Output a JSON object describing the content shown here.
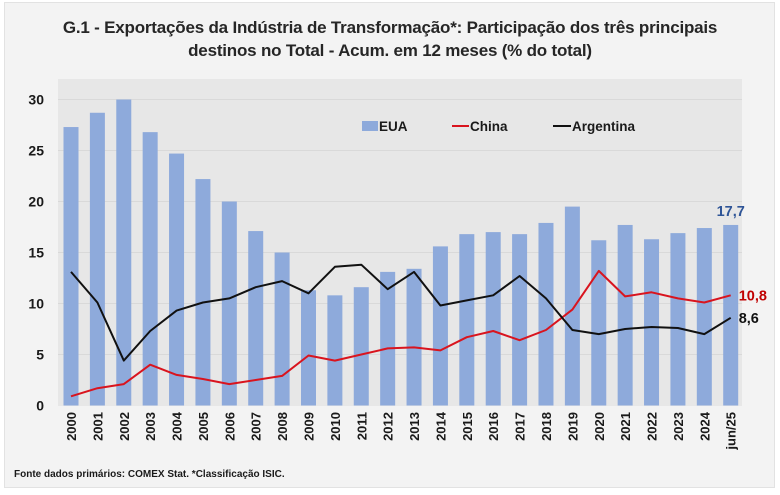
{
  "chart_data": {
    "type": "bar",
    "title": "G.1 - Exportações da Indústria de Transformação*: Participação dos três principais destinos no Total - Acum. em 12 meses (% do total)",
    "title_lines": [
      "G.1 - Exportações da Indústria de Transformação*: Participação dos três principais",
      "destinos no Total - Acum. em 12 meses (% do total)"
    ],
    "xlabel": "",
    "ylabel": "",
    "ylim": [
      0,
      30
    ],
    "yticks": [
      0,
      5,
      10,
      15,
      20,
      25,
      30
    ],
    "grid": true,
    "legend_position": "top-center",
    "categories": [
      "2000",
      "2001",
      "2002",
      "2003",
      "2004",
      "2005",
      "2006",
      "2007",
      "2008",
      "2009",
      "2010",
      "2011",
      "2012",
      "2013",
      "2014",
      "2015",
      "2016",
      "2017",
      "2018",
      "2019",
      "2020",
      "2021",
      "2022",
      "2023",
      "2024",
      "jun/25"
    ],
    "series": [
      {
        "name": "EUA",
        "type": "bar",
        "color": "#8eaadb",
        "values": [
          27.3,
          28.7,
          30.0,
          26.8,
          24.7,
          22.2,
          20.0,
          17.1,
          15.0,
          11.3,
          10.8,
          11.6,
          13.1,
          13.4,
          15.6,
          16.8,
          17.0,
          16.8,
          17.9,
          19.5,
          16.2,
          17.7,
          16.3,
          16.9,
          17.4,
          17.7
        ],
        "end_label": "17,7",
        "end_label_color": "#2f5597"
      },
      {
        "name": "China",
        "type": "line",
        "color": "#d9141e",
        "values": [
          0.9,
          1.7,
          2.1,
          4.0,
          3.0,
          2.6,
          2.1,
          2.5,
          2.9,
          4.9,
          4.4,
          5.0,
          5.6,
          5.7,
          5.4,
          6.7,
          7.3,
          6.4,
          7.4,
          9.4,
          13.2,
          10.7,
          11.1,
          10.5,
          10.1,
          10.8
        ],
        "end_label": "10,8",
        "end_label_color": "#c00000"
      },
      {
        "name": "Argentina",
        "type": "line",
        "color": "#111111",
        "values": [
          13.1,
          10.1,
          4.4,
          7.3,
          9.3,
          10.1,
          10.5,
          11.6,
          12.2,
          11.0,
          13.6,
          13.8,
          11.4,
          13.1,
          9.8,
          10.3,
          10.8,
          12.7,
          10.5,
          7.4,
          7.0,
          7.5,
          7.7,
          7.6,
          7.0,
          8.6
        ],
        "end_label": "8,6",
        "end_label_color": "#111111"
      }
    ]
  },
  "source_note": "Fonte dados primários: COMEX Stat.  *Classificação ISIC."
}
